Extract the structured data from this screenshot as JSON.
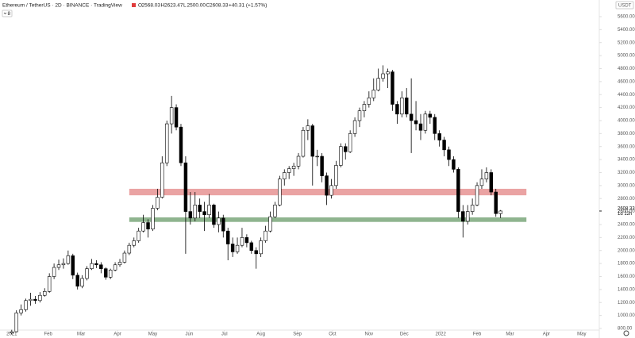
{
  "chart_data": {
    "type": "candlestick",
    "title": "Ethereum / TetherUS · 2D · BINANCE · TradingView",
    "ohlc_keys": [
      "O",
      "H",
      "L",
      "C"
    ],
    "ohlc_value_labels": [
      "2568.03",
      "2623.47",
      "2500.00",
      "2608.33"
    ],
    "change": "+40.31 (+1.57%)",
    "indicators_count": "8",
    "currency": "USDT",
    "countdown": "1d 12h",
    "up_color": "#ffffff",
    "down_color": "#000000",
    "border_color": "#000000",
    "grid": false,
    "x": [
      0,
      4,
      8,
      12,
      16,
      20,
      24,
      28,
      32,
      36,
      40,
      44,
      48,
      52,
      56,
      60,
      64,
      68,
      72,
      76,
      80,
      84,
      88,
      92,
      96,
      100,
      104,
      108,
      112,
      116,
      120,
      124,
      128,
      132,
      136,
      140,
      144,
      148,
      152,
      156,
      160,
      164,
      168,
      172,
      176,
      180,
      184,
      188,
      192,
      196,
      200,
      204,
      208,
      212,
      216,
      220,
      224,
      228,
      232,
      236,
      240,
      244,
      248,
      252,
      256,
      260,
      264,
      268,
      272,
      276,
      280,
      284,
      288,
      292,
      296,
      300,
      304,
      308,
      312,
      316,
      320,
      324,
      328,
      332,
      336,
      340,
      344,
      348,
      352,
      356,
      360,
      364,
      368,
      372,
      376,
      380,
      384,
      388,
      392,
      396,
      400,
      404,
      408,
      412,
      416
    ],
    "ohlc": [
      [
        730,
        780,
        710,
        750
      ],
      [
        750,
        1080,
        740,
        1040
      ],
      [
        1040,
        1170,
        1000,
        1090
      ],
      [
        1090,
        1260,
        1060,
        1230
      ],
      [
        1230,
        1350,
        1150,
        1250
      ],
      [
        1250,
        1300,
        1180,
        1230
      ],
      [
        1230,
        1360,
        1200,
        1310
      ],
      [
        1310,
        1420,
        1290,
        1370
      ],
      [
        1370,
        1650,
        1350,
        1600
      ],
      [
        1600,
        1800,
        1560,
        1740
      ],
      [
        1740,
        1860,
        1700,
        1780
      ],
      [
        1780,
        1880,
        1720,
        1800
      ],
      [
        1800,
        2000,
        1780,
        1920
      ],
      [
        1920,
        1950,
        1560,
        1620
      ],
      [
        1620,
        1660,
        1400,
        1450
      ],
      [
        1450,
        1620,
        1420,
        1570
      ],
      [
        1570,
        1760,
        1540,
        1720
      ],
      [
        1720,
        1870,
        1700,
        1800
      ],
      [
        1800,
        1850,
        1730,
        1780
      ],
      [
        1780,
        1820,
        1650,
        1720
      ],
      [
        1720,
        1740,
        1550,
        1590
      ],
      [
        1590,
        1720,
        1560,
        1700
      ],
      [
        1700,
        1820,
        1680,
        1780
      ],
      [
        1780,
        1870,
        1750,
        1820
      ],
      [
        1820,
        2000,
        1800,
        1960
      ],
      [
        1960,
        2120,
        1930,
        2080
      ],
      [
        2080,
        2200,
        2050,
        2150
      ],
      [
        2150,
        2350,
        2120,
        2300
      ],
      [
        2300,
        2550,
        2280,
        2430
      ],
      [
        2430,
        2480,
        2200,
        2330
      ],
      [
        2330,
        2700,
        2300,
        2650
      ],
      [
        2650,
        2950,
        2620,
        2820
      ],
      [
        2820,
        3450,
        2800,
        3350
      ],
      [
        3350,
        4000,
        3300,
        3950
      ],
      [
        3950,
        4380,
        3800,
        4200
      ],
      [
        4200,
        4250,
        3850,
        3900
      ],
      [
        3900,
        3950,
        3300,
        3350
      ],
      [
        3350,
        3450,
        1950,
        2600
      ],
      [
        2600,
        2900,
        2400,
        2500
      ],
      [
        2500,
        2900,
        2450,
        2700
      ],
      [
        2700,
        2800,
        2500,
        2600
      ],
      [
        2600,
        2750,
        2300,
        2550
      ],
      [
        2550,
        2870,
        2500,
        2700
      ],
      [
        2700,
        2720,
        2350,
        2400
      ],
      [
        2400,
        2600,
        2280,
        2500
      ],
      [
        2500,
        2550,
        2200,
        2300
      ],
      [
        2300,
        2350,
        1850,
        2100
      ],
      [
        2100,
        2200,
        1900,
        1980
      ],
      [
        1980,
        2200,
        1950,
        2080
      ],
      [
        2080,
        2350,
        2050,
        2200
      ],
      [
        2200,
        2250,
        2050,
        2120
      ],
      [
        2120,
        2150,
        1950,
        2000
      ],
      [
        2000,
        2050,
        1720,
        1950
      ],
      [
        1950,
        2200,
        1900,
        2150
      ],
      [
        2150,
        2380,
        2120,
        2300
      ],
      [
        2300,
        2600,
        2280,
        2520
      ],
      [
        2520,
        2750,
        2500,
        2700
      ],
      [
        2700,
        3150,
        2680,
        3100
      ],
      [
        3100,
        3250,
        3000,
        3200
      ],
      [
        3200,
        3300,
        3100,
        3260
      ],
      [
        3260,
        3350,
        3150,
        3300
      ],
      [
        3300,
        3500,
        3250,
        3450
      ],
      [
        3450,
        3900,
        3430,
        3850
      ],
      [
        3850,
        4020,
        3700,
        3920
      ],
      [
        3920,
        3950,
        3000,
        3450
      ],
      [
        3450,
        3550,
        3300,
        3450
      ],
      [
        3450,
        3500,
        3050,
        3150
      ],
      [
        3150,
        3200,
        2700,
        2850
      ],
      [
        2850,
        3100,
        2800,
        3000
      ],
      [
        3000,
        3380,
        2950,
        3310
      ],
      [
        3310,
        3650,
        3280,
        3600
      ],
      [
        3600,
        3650,
        3400,
        3520
      ],
      [
        3520,
        3850,
        3500,
        3800
      ],
      [
        3800,
        4050,
        3750,
        4000
      ],
      [
        4000,
        4200,
        3900,
        4150
      ],
      [
        4150,
        4300,
        4050,
        4250
      ],
      [
        4250,
        4450,
        4200,
        4350
      ],
      [
        4350,
        4650,
        4300,
        4470
      ],
      [
        4470,
        4800,
        4450,
        4650
      ],
      [
        4650,
        4850,
        4600,
        4720
      ],
      [
        4720,
        4800,
        4500,
        4750
      ],
      [
        4750,
        4780,
        4150,
        4250
      ],
      [
        4250,
        4300,
        3950,
        4100
      ],
      [
        4100,
        4450,
        4050,
        4350
      ],
      [
        4350,
        4500,
        4050,
        4100
      ],
      [
        4100,
        4650,
        3500,
        4000
      ],
      [
        4000,
        4300,
        3850,
        3950
      ],
      [
        3950,
        4100,
        3700,
        3850
      ],
      [
        3850,
        4150,
        3800,
        4100
      ],
      [
        4100,
        4150,
        3950,
        4050
      ],
      [
        4050,
        4100,
        3700,
        3800
      ],
      [
        3800,
        3850,
        3600,
        3700
      ],
      [
        3700,
        3750,
        3450,
        3550
      ],
      [
        3550,
        3600,
        3300,
        3400
      ],
      [
        3400,
        3450,
        3200,
        3250
      ],
      [
        3250,
        3280,
        2500,
        2600
      ],
      [
        2600,
        2700,
        2200,
        2450
      ],
      [
        2450,
        2700,
        2400,
        2600
      ],
      [
        2600,
        2800,
        2550,
        2700
      ],
      [
        2700,
        3050,
        2680,
        3000
      ],
      [
        3000,
        3250,
        2950,
        3100
      ],
      [
        3100,
        3280,
        3050,
        3200
      ],
      [
        3200,
        3250,
        2850,
        2900
      ],
      [
        2900,
        2950,
        2520,
        2568.03
      ],
      [
        2568.03,
        2623.47,
        2500,
        2608.33
      ]
    ],
    "zones": [
      {
        "low": 2850,
        "high": 2950,
        "from": 100,
        "to": 438,
        "color": "#eaa3a3"
      },
      {
        "low": 2440,
        "high": 2510,
        "from": 100,
        "to": 438,
        "color": "#8fb48f"
      }
    ],
    "xlim": [
      -10,
      500
    ],
    "ylim": [
      800,
      5856
    ],
    "xticks": [
      {
        "value": 0,
        "label": "2021"
      },
      {
        "value": 31,
        "label": "Feb"
      },
      {
        "value": 59,
        "label": "Mar"
      },
      {
        "value": 90,
        "label": "Apr"
      },
      {
        "value": 120,
        "label": "May"
      },
      {
        "value": 151,
        "label": "Jun"
      },
      {
        "value": 181,
        "label": "Jul"
      },
      {
        "value": 212,
        "label": "Aug"
      },
      {
        "value": 243,
        "label": "Sep"
      },
      {
        "value": 273,
        "label": "Oct"
      },
      {
        "value": 304,
        "label": "Nov"
      },
      {
        "value": 334,
        "label": "Dec"
      },
      {
        "value": 365,
        "label": "2022"
      },
      {
        "value": 396,
        "label": "Feb"
      },
      {
        "value": 424,
        "label": "Mar"
      },
      {
        "value": 455,
        "label": "Apr"
      },
      {
        "value": 485,
        "label": "May"
      }
    ],
    "yticks": [
      {
        "value": 800,
        "label": "800.00"
      },
      {
        "value": 1000,
        "label": "1000.00"
      },
      {
        "value": 1200,
        "label": "1200.00"
      },
      {
        "value": 1400,
        "label": "1400.00"
      },
      {
        "value": 1600,
        "label": "1600.00"
      },
      {
        "value": 1800,
        "label": "1800.00"
      },
      {
        "value": 2000,
        "label": "2000.00"
      },
      {
        "value": 2200,
        "label": "2200.00"
      },
      {
        "value": 2400,
        "label": "2400.00"
      },
      {
        "value": 2600,
        "label": "2600.00"
      },
      {
        "value": 2800,
        "label": "2800.00"
      },
      {
        "value": 3000,
        "label": "3000.00"
      },
      {
        "value": 3200,
        "label": "3200.00"
      },
      {
        "value": 3400,
        "label": "3400.00"
      },
      {
        "value": 3600,
        "label": "3600.00"
      },
      {
        "value": 3800,
        "label": "3800.00"
      },
      {
        "value": 4000,
        "label": "4000.00"
      },
      {
        "value": 4200,
        "label": "4200.00"
      },
      {
        "value": 4400,
        "label": "4400.00"
      },
      {
        "value": 4600,
        "label": "4600.00"
      },
      {
        "value": 4800,
        "label": "4800.00"
      },
      {
        "value": 5000,
        "label": "5000.00"
      },
      {
        "value": 5200,
        "label": "5200.00"
      },
      {
        "value": 5400,
        "label": "5400.00"
      },
      {
        "value": 5600,
        "label": "5600.00"
      }
    ]
  }
}
